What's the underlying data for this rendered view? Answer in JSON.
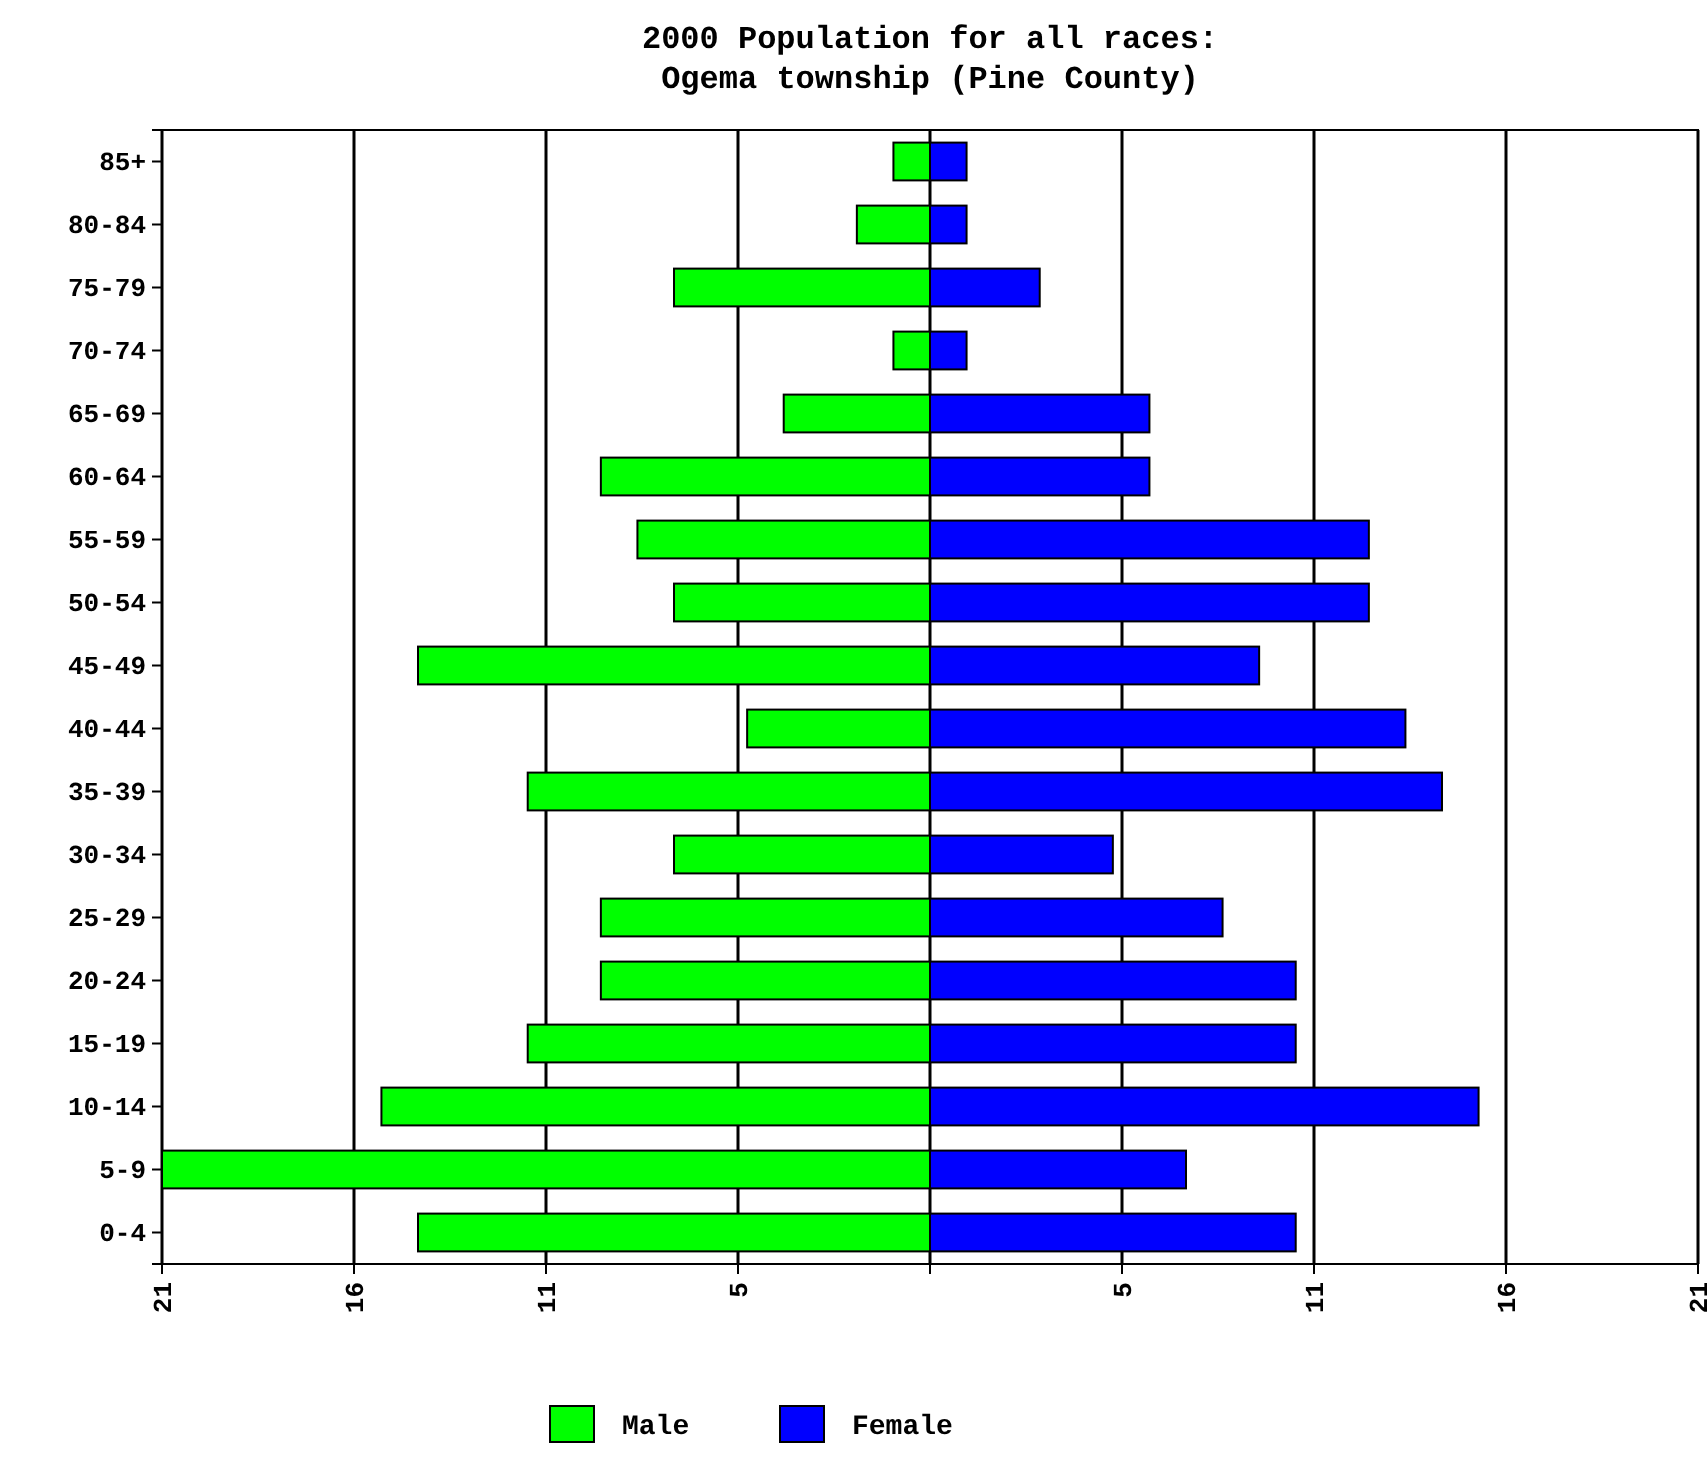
{
  "chart_data": {
    "type": "bar",
    "orientation": "horizontal",
    "stacked": true,
    "title": "2000 Population for all races:",
    "subtitle": "Ogema township (Pine County)",
    "categories": [
      "85+",
      "80-84",
      "75-79",
      "70-74",
      "65-69",
      "60-64",
      "55-59",
      "50-54",
      "45-49",
      "40-44",
      "35-39",
      "30-34",
      "25-29",
      "20-24",
      "15-19",
      "10-14",
      "5-9",
      "0-4"
    ],
    "series": [
      {
        "name": "Male",
        "color": "#00ff00",
        "values": [
          -1,
          -2,
          -7,
          -1,
          -4,
          -9,
          -8,
          -7,
          -14,
          -5,
          -11,
          -7,
          -9,
          -9,
          -11,
          -15,
          -21,
          -14
        ]
      },
      {
        "name": "Female",
        "color": "#0000ff",
        "values": [
          1,
          1,
          3,
          1,
          6,
          6,
          12,
          12,
          9,
          13,
          14,
          5,
          8,
          10,
          10,
          15,
          7,
          10
        ]
      }
    ],
    "xlim": [
      -21,
      21
    ],
    "xticks": [
      {
        "value": -21,
        "label": "21"
      },
      {
        "value": -15.75,
        "label": "16"
      },
      {
        "value": -10.5,
        "label": "11"
      },
      {
        "value": -5.25,
        "label": "5"
      },
      {
        "value": 0,
        "label": null
      },
      {
        "value": 5.25,
        "label": "5"
      },
      {
        "value": 10.5,
        "label": "11"
      },
      {
        "value": 15.75,
        "label": "16"
      },
      {
        "value": 21,
        "label": "21"
      }
    ],
    "grid": "x",
    "legend": "bottom"
  }
}
